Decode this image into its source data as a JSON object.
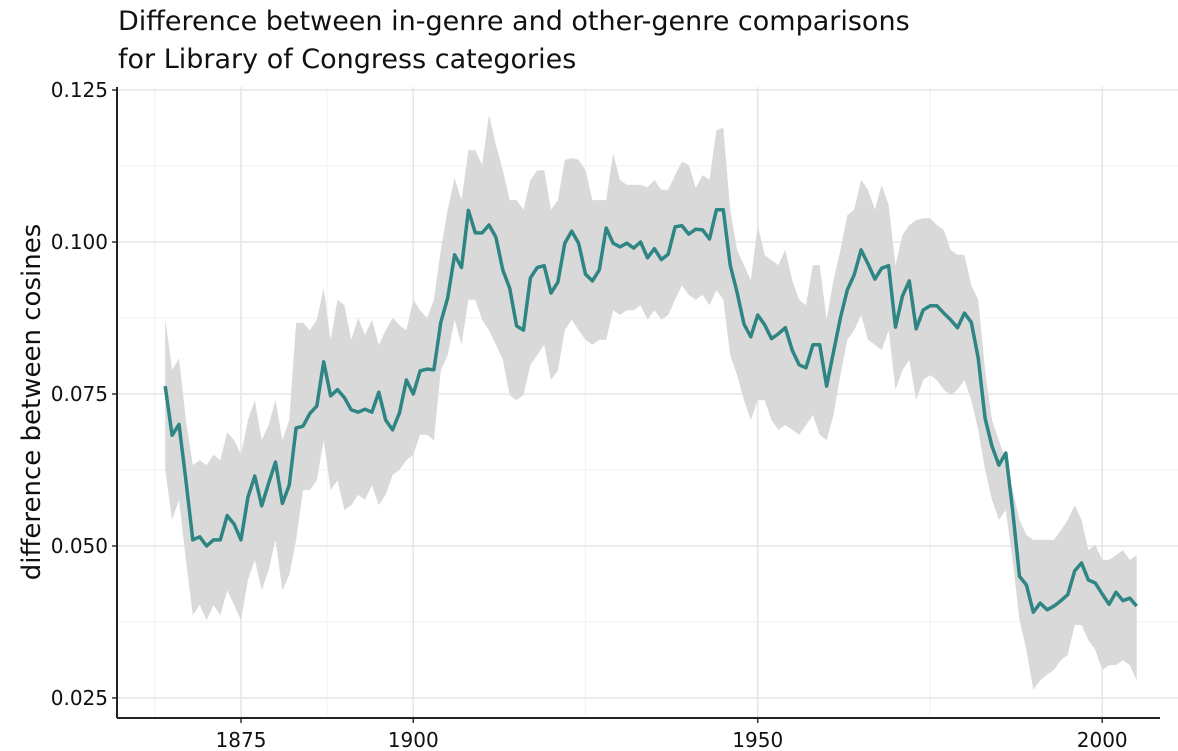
{
  "chart_data": {
    "type": "line",
    "title": [
      "Difference between in-genre and other-genre comparisons",
      "for Library of Congress categories"
    ],
    "y_label": "difference between cosines",
    "color": "#2e8583",
    "band_color": "#d9d9d9",
    "xlim": [
      1857,
      2011
    ],
    "ylim": [
      0.0217,
      0.1255
    ],
    "xticks": [
      1875,
      1900,
      1950,
      2000
    ],
    "xminor": [
      1862.5,
      1887.5,
      1925,
      1975
    ],
    "yticks": [
      {
        "value": 0.025,
        "label": "0.025"
      },
      {
        "value": 0.05,
        "label": "0.050"
      },
      {
        "value": 0.075,
        "label": "0.075"
      },
      {
        "value": 0.1,
        "label": "0.100"
      },
      {
        "value": 0.125,
        "label": "0.125"
      }
    ],
    "yminor": [
      0.0375,
      0.0625,
      0.0875,
      0.1125
    ],
    "grid": true,
    "x": [
      1864,
      1865,
      1866,
      1867,
      1868,
      1869,
      1870,
      1871,
      1872,
      1873,
      1874,
      1875,
      1876,
      1877,
      1878,
      1879,
      1880,
      1881,
      1882,
      1883,
      1884,
      1885,
      1886,
      1887,
      1888,
      1889,
      1890,
      1891,
      1892,
      1893,
      1894,
      1895,
      1896,
      1897,
      1898,
      1899,
      1900,
      1901,
      1902,
      1903,
      1904,
      1905,
      1906,
      1907,
      1908,
      1909,
      1910,
      1911,
      1912,
      1913,
      1914,
      1915,
      1916,
      1917,
      1918,
      1919,
      1920,
      1921,
      1922,
      1923,
      1924,
      1925,
      1926,
      1927,
      1928,
      1929,
      1930,
      1931,
      1932,
      1933,
      1934,
      1935,
      1936,
      1937,
      1938,
      1939,
      1940,
      1941,
      1942,
      1943,
      1944,
      1945,
      1946,
      1947,
      1948,
      1949,
      1950,
      1951,
      1952,
      1953,
      1954,
      1955,
      1956,
      1957,
      1958,
      1959,
      1960,
      1961,
      1962,
      1963,
      1964,
      1965,
      1966,
      1967,
      1968,
      1969,
      1970,
      1971,
      1972,
      1973,
      1974,
      1975,
      1976,
      1977,
      1978,
      1979,
      1980,
      1981,
      1982,
      1983,
      1984,
      1985,
      1986,
      1987,
      1988,
      1989,
      1990,
      1991,
      1992,
      1993,
      1994,
      1995,
      1996,
      1997,
      1998,
      1999,
      2000,
      2001,
      2002,
      2003,
      2004,
      2005
    ],
    "values": [
      0.0763,
      0.0682,
      0.07,
      0.0608,
      0.051,
      0.0515,
      0.05,
      0.051,
      0.051,
      0.055,
      0.0536,
      0.051,
      0.058,
      0.0615,
      0.0566,
      0.0603,
      0.0638,
      0.057,
      0.06,
      0.0694,
      0.0697,
      0.0718,
      0.073,
      0.0803,
      0.0747,
      0.0757,
      0.0744,
      0.0724,
      0.072,
      0.0725,
      0.072,
      0.0753,
      0.0707,
      0.0691,
      0.0719,
      0.0773,
      0.075,
      0.0788,
      0.0791,
      0.079,
      0.0868,
      0.0908,
      0.0979,
      0.0958,
      0.1052,
      0.1015,
      0.1015,
      0.1028,
      0.1008,
      0.0954,
      0.0924,
      0.0862,
      0.0855,
      0.0941,
      0.0958,
      0.0961,
      0.0916,
      0.0934,
      0.0998,
      0.1018,
      0.0998,
      0.0947,
      0.0936,
      0.0954,
      0.1023,
      0.0998,
      0.0992,
      0.0998,
      0.099,
      0.1,
      0.0974,
      0.0989,
      0.0971,
      0.098,
      0.1025,
      0.1027,
      0.1013,
      0.1021,
      0.102,
      0.1005,
      0.1053,
      0.1053,
      0.0962,
      0.0917,
      0.0865,
      0.0844,
      0.088,
      0.0864,
      0.0841,
      0.0849,
      0.0859,
      0.0822,
      0.0798,
      0.0793,
      0.0831,
      0.0831,
      0.0763,
      0.0819,
      0.0875,
      0.0921,
      0.0946,
      0.0987,
      0.0964,
      0.0939,
      0.0957,
      0.0961,
      0.086,
      0.0911,
      0.0936,
      0.0857,
      0.0888,
      0.0895,
      0.0895,
      0.0883,
      0.0872,
      0.0859,
      0.0883,
      0.0868,
      0.0809,
      0.071,
      0.0664,
      0.0633,
      0.0653,
      0.0559,
      0.045,
      0.0436,
      0.0391,
      0.0406,
      0.0395,
      0.0401,
      0.041,
      0.042,
      0.0459,
      0.0472,
      0.0444,
      0.0439,
      0.0421,
      0.0404,
      0.0424,
      0.041,
      0.0414,
      0.0401
    ],
    "upper": [
      0.0875,
      0.0789,
      0.0809,
      0.0707,
      0.0633,
      0.0641,
      0.0633,
      0.065,
      0.0641,
      0.0687,
      0.0674,
      0.065,
      0.0707,
      0.074,
      0.0674,
      0.0699,
      0.074,
      0.0674,
      0.0707,
      0.0867,
      0.0867,
      0.0855,
      0.0872,
      0.0924,
      0.0839,
      0.0905,
      0.0896,
      0.0839,
      0.0875,
      0.0847,
      0.0872,
      0.0831,
      0.0855,
      0.0875,
      0.0863,
      0.0855,
      0.0905,
      0.0888,
      0.0875,
      0.0905,
      0.0987,
      0.1053,
      0.1105,
      0.1069,
      0.1151,
      0.1151,
      0.1127,
      0.1209,
      0.116,
      0.1118,
      0.1069,
      0.1069,
      0.1053,
      0.1102,
      0.1118,
      0.1118,
      0.1053,
      0.1069,
      0.1135,
      0.1138,
      0.1135,
      0.1118,
      0.1069,
      0.1069,
      0.1069,
      0.1146,
      0.1102,
      0.1094,
      0.1094,
      0.1094,
      0.109,
      0.1102,
      0.1086,
      0.1086,
      0.111,
      0.1132,
      0.1127,
      0.1089,
      0.111,
      0.1102,
      0.1184,
      0.1188,
      0.1053,
      0.0987,
      0.0962,
      0.0937,
      0.1028,
      0.0979,
      0.097,
      0.0962,
      0.0987,
      0.0937,
      0.0905,
      0.0896,
      0.0962,
      0.0962,
      0.0872,
      0.0937,
      0.0987,
      0.1044,
      0.1053,
      0.1102,
      0.1086,
      0.1053,
      0.1094,
      0.1061,
      0.0962,
      0.1011,
      0.1028,
      0.1036,
      0.1039,
      0.1039,
      0.1028,
      0.102,
      0.0987,
      0.0979,
      0.0979,
      0.0929,
      0.0905,
      0.0789,
      0.0707,
      0.0674,
      0.0641,
      0.0592,
      0.0543,
      0.0518,
      0.051,
      0.051,
      0.051,
      0.051,
      0.0526,
      0.0543,
      0.0567,
      0.0543,
      0.0493,
      0.0502,
      0.0477,
      0.0477,
      0.0485,
      0.0493,
      0.0477,
      0.0485
    ],
    "lower": [
      0.0625,
      0.0543,
      0.0576,
      0.0477,
      0.0386,
      0.0403,
      0.0378,
      0.0403,
      0.0386,
      0.0427,
      0.0403,
      0.0378,
      0.0444,
      0.0477,
      0.0427,
      0.046,
      0.051,
      0.0427,
      0.0452,
      0.051,
      0.0592,
      0.0592,
      0.0608,
      0.0674,
      0.0592,
      0.0608,
      0.0559,
      0.0567,
      0.0584,
      0.0576,
      0.06,
      0.0567,
      0.0584,
      0.0617,
      0.0625,
      0.0641,
      0.065,
      0.0683,
      0.0683,
      0.0674,
      0.0789,
      0.0814,
      0.0872,
      0.0831,
      0.0905,
      0.0905,
      0.0872,
      0.0855,
      0.0831,
      0.0806,
      0.0748,
      0.074,
      0.0748,
      0.0798,
      0.0814,
      0.0831,
      0.0773,
      0.0789,
      0.0855,
      0.0872,
      0.0855,
      0.0839,
      0.0831,
      0.0839,
      0.0839,
      0.0888,
      0.088,
      0.0888,
      0.0888,
      0.0896,
      0.0872,
      0.0888,
      0.0872,
      0.088,
      0.0905,
      0.0929,
      0.0913,
      0.0905,
      0.0913,
      0.0896,
      0.0921,
      0.0905,
      0.0814,
      0.0781,
      0.074,
      0.0707,
      0.074,
      0.074,
      0.0707,
      0.0691,
      0.0699,
      0.0691,
      0.0683,
      0.0699,
      0.0715,
      0.0683,
      0.0674,
      0.0715,
      0.0781,
      0.0839,
      0.0855,
      0.088,
      0.0839,
      0.0831,
      0.0822,
      0.0855,
      0.0757,
      0.0789,
      0.0806,
      0.074,
      0.0773,
      0.0781,
      0.0773,
      0.0757,
      0.0748,
      0.0757,
      0.0773,
      0.074,
      0.0691,
      0.0625,
      0.0576,
      0.0543,
      0.0559,
      0.0477,
      0.0378,
      0.0329,
      0.0263,
      0.0279,
      0.0288,
      0.0296,
      0.0312,
      0.0321,
      0.037,
      0.037,
      0.0345,
      0.0329,
      0.0296,
      0.0304,
      0.0304,
      0.0312,
      0.0304,
      0.0279
    ]
  }
}
